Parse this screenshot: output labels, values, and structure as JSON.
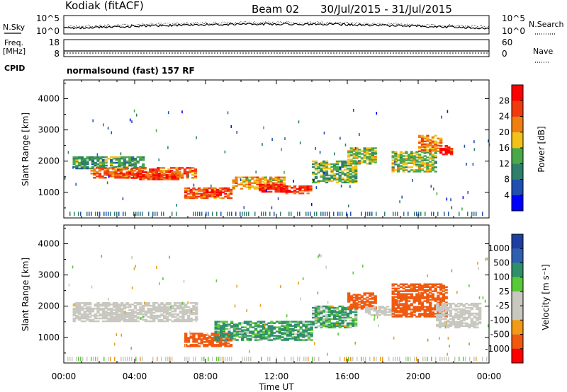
{
  "header": {
    "station": "Kodiak (fitACF)",
    "beam": "Beam 02",
    "date_range": "30/Jul/2015 - 31/Jul/2015"
  },
  "noise_panel": {
    "left_label": "N.Sky",
    "right_label": "N.Search",
    "left_ticks": [
      "10^5",
      "10^0"
    ],
    "right_ticks": [
      "10^5",
      "10^0"
    ]
  },
  "freq_panel": {
    "left_label_1": "Freq.",
    "left_label_2": "[MHz]",
    "right_label": "Nave",
    "left_ticks": [
      "18",
      "8"
    ],
    "right_ticks": [
      "60",
      "0"
    ]
  },
  "cpid": {
    "label": "CPID",
    "value": "normalsound (fast) 157 RF"
  },
  "colors": {
    "power": [
      "#0000ff",
      "#1f4fb0",
      "#2f7f6a",
      "#4aa84a",
      "#f2c21a",
      "#f07f12",
      "#f03a10",
      "#ff0000"
    ],
    "velocity": [
      "#ff0000",
      "#f05a10",
      "#f09a18",
      "#c8c8c0",
      "#c8c8c0",
      "#5ac83a",
      "#2f8f6a",
      "#2f5fb0",
      "#1f3fa0"
    ]
  },
  "chart_data": [
    {
      "type": "heatmap",
      "title": "",
      "xlabel": "",
      "ylabel": "Slant Range [km]",
      "ylim": [
        180,
        4600
      ],
      "yticks": [
        1000,
        2000,
        3000,
        4000
      ],
      "colorbar": {
        "label": "Power [dB]",
        "ticks": [
          "4",
          "8",
          "12",
          "16",
          "20",
          "24",
          "28"
        ],
        "range": [
          0,
          30
        ]
      },
      "echo_bands": [
        {
          "t": [
            0.5,
            4.5
          ],
          "r": [
            1750,
            2150
          ],
          "value": 12
        },
        {
          "t": [
            1.5,
            7.5
          ],
          "r": [
            1450,
            1800
          ],
          "value": 24
        },
        {
          "t": [
            3.5,
            6.5
          ],
          "r": [
            1400,
            1650
          ],
          "value": 26
        },
        {
          "t": [
            6.8,
            9.5
          ],
          "r": [
            800,
            1150
          ],
          "value": 24
        },
        {
          "t": [
            8.0,
            9.0
          ],
          "r": [
            850,
            1050
          ],
          "value": 30
        },
        {
          "t": [
            9.5,
            12.5
          ],
          "r": [
            1100,
            1500
          ],
          "value": 20
        },
        {
          "t": [
            11.0,
            12.5
          ],
          "r": [
            1000,
            1250
          ],
          "value": 28
        },
        {
          "t": [
            12.5,
            14.0
          ],
          "r": [
            950,
            1200
          ],
          "value": 26
        },
        {
          "t": [
            14.0,
            16.5
          ],
          "r": [
            1300,
            2000
          ],
          "value": 14
        },
        {
          "t": [
            16.0,
            17.5
          ],
          "r": [
            1900,
            2400
          ],
          "value": 16
        },
        {
          "t": [
            18.5,
            21.0
          ],
          "r": [
            1650,
            2300
          ],
          "value": 16
        },
        {
          "t": [
            20.0,
            21.2
          ],
          "r": [
            2300,
            2800
          ],
          "value": 22
        },
        {
          "t": [
            21.2,
            21.8
          ],
          "r": [
            2200,
            2500
          ],
          "value": 28
        }
      ]
    },
    {
      "type": "heatmap",
      "title": "",
      "xlabel": "Time UT",
      "ylabel": "Slant Range [km]",
      "xticks": [
        "00:00",
        "04:00",
        "08:00",
        "12:00",
        "16:00",
        "20:00",
        "00:00"
      ],
      "xlim": [
        0,
        24
      ],
      "ylim": [
        180,
        4600
      ],
      "yticks": [
        1000,
        2000,
        3000,
        4000
      ],
      "colorbar": {
        "label": "Velocity [m s⁻¹]",
        "ticks": [
          "1000",
          "500",
          "100",
          "25",
          "-25",
          "-100",
          "-500",
          "-1000"
        ]
      },
      "echo_bands": [
        {
          "t": [
            0.5,
            7.5
          ],
          "r": [
            1500,
            2100
          ],
          "value": 0
        },
        {
          "t": [
            6.8,
            9.5
          ],
          "r": [
            700,
            1150
          ],
          "value": -300
        },
        {
          "t": [
            8.5,
            14.0
          ],
          "r": [
            900,
            1500
          ],
          "value": 150
        },
        {
          "t": [
            14.0,
            16.5
          ],
          "r": [
            1300,
            2000
          ],
          "value": 120
        },
        {
          "t": [
            16.0,
            17.5
          ],
          "r": [
            1900,
            2400
          ],
          "value": -300
        },
        {
          "t": [
            17.0,
            18.5
          ],
          "r": [
            1700,
            2000
          ],
          "value": 0
        },
        {
          "t": [
            18.5,
            21.5
          ],
          "r": [
            1650,
            2700
          ],
          "value": -300
        },
        {
          "t": [
            21.0,
            23.5
          ],
          "r": [
            1300,
            2100
          ],
          "value": 0
        }
      ]
    }
  ]
}
